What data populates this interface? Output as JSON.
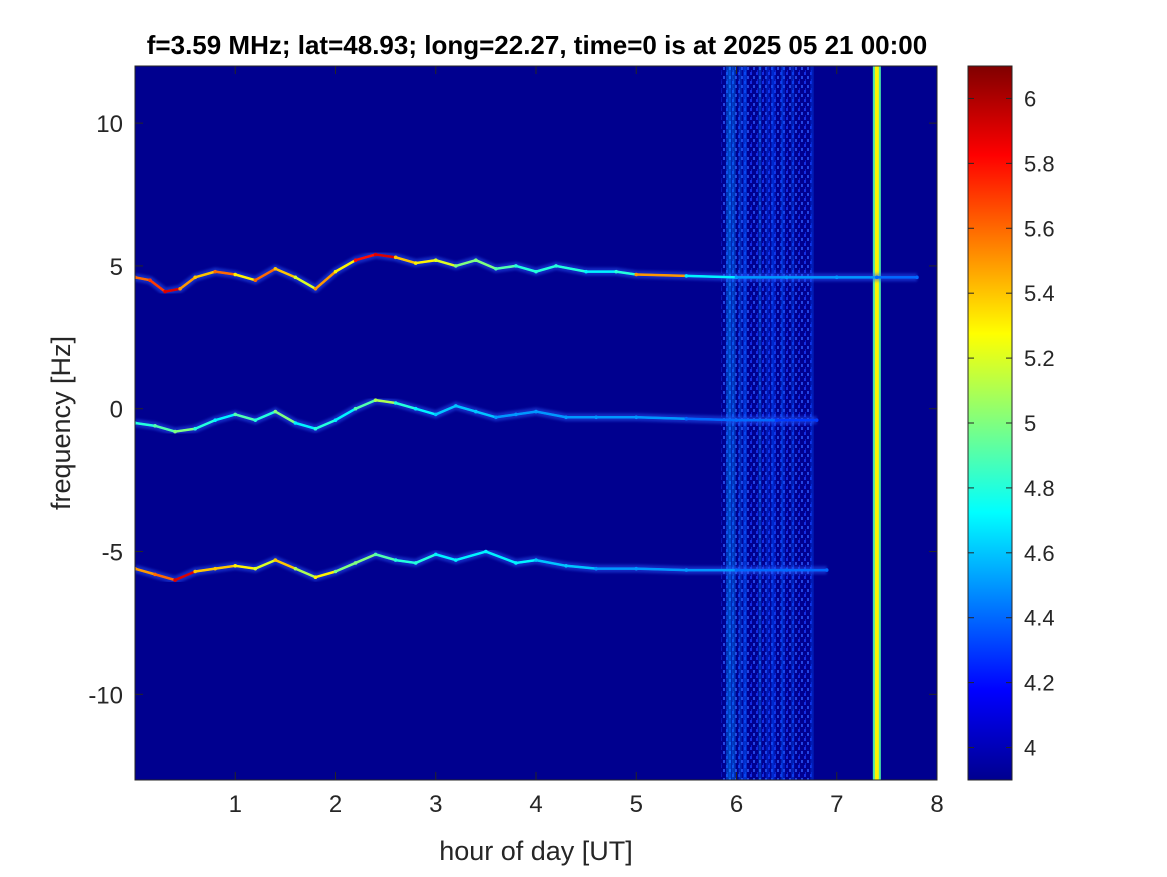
{
  "chart_data": {
    "type": "heatmap",
    "title": "f=3.59 MHz;  lat=48.93; long=22.27, time=0 is at 2025 05 21 00:00",
    "xlabel": "hour of day [UT]",
    "ylabel": "frequency [Hz]",
    "xlim": [
      0,
      8
    ],
    "ylim": [
      -13,
      12
    ],
    "xticks": [
      1,
      2,
      3,
      4,
      5,
      6,
      7,
      8
    ],
    "yticks": [
      10,
      5,
      0,
      -5,
      -10
    ],
    "xtick_labels": [
      "1",
      "2",
      "3",
      "4",
      "5",
      "6",
      "7",
      "8"
    ],
    "ytick_labels": [
      "10",
      "5",
      "0",
      "-5",
      "-10"
    ],
    "colormap": "jet",
    "background_color": "#00008f",
    "colorbar": {
      "range": [
        3.9,
        6.1
      ],
      "ticks": [
        6,
        5.8,
        5.6,
        5.4,
        5.2,
        5,
        4.8,
        4.6,
        4.4,
        4.2,
        4
      ],
      "tick_labels": [
        "6",
        "5.8",
        "5.6",
        "5.4",
        "5.2",
        "5",
        "4.8",
        "4.6",
        "4.4",
        "4.2",
        "4"
      ]
    },
    "series": [
      {
        "center_hz": 5,
        "x": [
          0,
          0.15,
          0.3,
          0.45,
          0.6,
          0.8,
          1.0,
          1.2,
          1.4,
          1.6,
          1.8,
          2.0,
          2.2,
          2.4,
          2.6,
          2.8,
          3.0,
          3.2,
          3.4,
          3.6,
          3.8,
          4.0,
          4.2,
          4.5,
          4.8,
          5.0,
          5.5,
          6.0,
          6.5,
          7.0,
          7.4,
          7.8
        ],
        "y": [
          4.6,
          4.5,
          4.1,
          4.2,
          4.6,
          4.8,
          4.7,
          4.5,
          4.9,
          4.6,
          4.2,
          4.8,
          5.2,
          5.4,
          5.3,
          5.1,
          5.2,
          5.0,
          5.2,
          4.9,
          5.0,
          4.8,
          5.0,
          4.8,
          4.8,
          4.7,
          4.65,
          4.6,
          4.6,
          4.6,
          4.6,
          4.6
        ],
        "intensity": [
          5.6,
          5.7,
          5.9,
          5.5,
          5.4,
          5.6,
          5.3,
          5.6,
          5.4,
          5.2,
          5.5,
          5.3,
          5.8,
          5.9,
          5.4,
          5.3,
          5.2,
          5.0,
          5.0,
          4.9,
          4.8,
          4.8,
          4.8,
          4.7,
          4.8,
          5.5,
          4.7,
          4.5,
          4.5,
          4.5,
          4.4,
          4.4
        ]
      },
      {
        "center_hz": 0,
        "x": [
          0,
          0.2,
          0.4,
          0.6,
          0.8,
          1.0,
          1.2,
          1.4,
          1.6,
          1.8,
          2.0,
          2.2,
          2.4,
          2.6,
          2.8,
          3.0,
          3.2,
          3.4,
          3.6,
          3.8,
          4.0,
          4.3,
          4.6,
          5.0,
          5.5,
          6.0,
          6.4,
          6.8
        ],
        "y": [
          -0.5,
          -0.6,
          -0.8,
          -0.7,
          -0.4,
          -0.2,
          -0.4,
          -0.1,
          -0.5,
          -0.7,
          -0.4,
          0.0,
          0.3,
          0.2,
          0.0,
          -0.2,
          0.1,
          -0.1,
          -0.3,
          -0.2,
          -0.1,
          -0.3,
          -0.3,
          -0.3,
          -0.35,
          -0.4,
          -0.4,
          -0.4
        ],
        "intensity": [
          4.8,
          4.9,
          5.0,
          4.8,
          4.7,
          4.9,
          4.8,
          5.0,
          4.7,
          4.8,
          4.7,
          4.9,
          5.1,
          4.8,
          4.7,
          4.6,
          4.6,
          4.6,
          4.5,
          4.5,
          4.5,
          4.5,
          4.5,
          4.5,
          4.4,
          4.4,
          4.3,
          4.3
        ]
      },
      {
        "center_hz": -5,
        "x": [
          0,
          0.2,
          0.4,
          0.6,
          0.8,
          1.0,
          1.2,
          1.4,
          1.6,
          1.8,
          2.0,
          2.2,
          2.4,
          2.6,
          2.8,
          3.0,
          3.2,
          3.5,
          3.8,
          4.0,
          4.3,
          4.6,
          5.0,
          5.5,
          6.0,
          6.5,
          6.9
        ],
        "y": [
          -5.6,
          -5.8,
          -6.0,
          -5.7,
          -5.6,
          -5.5,
          -5.6,
          -5.3,
          -5.6,
          -5.9,
          -5.7,
          -5.4,
          -5.1,
          -5.3,
          -5.4,
          -5.1,
          -5.3,
          -5.0,
          -5.4,
          -5.3,
          -5.5,
          -5.6,
          -5.6,
          -5.65,
          -5.65,
          -5.65,
          -5.65
        ],
        "intensity": [
          5.5,
          5.6,
          5.9,
          5.4,
          5.4,
          5.3,
          5.2,
          5.4,
          5.1,
          5.3,
          5.0,
          5.0,
          4.9,
          4.8,
          4.8,
          4.7,
          4.7,
          4.7,
          4.7,
          4.6,
          4.6,
          4.5,
          4.5,
          4.5,
          4.4,
          4.4,
          4.4
        ]
      }
    ],
    "vertical_features": [
      {
        "x_start": 5.85,
        "x_end": 6.75,
        "intensity": 4.3,
        "kind": "broadband noise"
      },
      {
        "x_start": 7.38,
        "x_end": 7.42,
        "intensity": 5.3,
        "kind": "strong interference"
      }
    ]
  }
}
